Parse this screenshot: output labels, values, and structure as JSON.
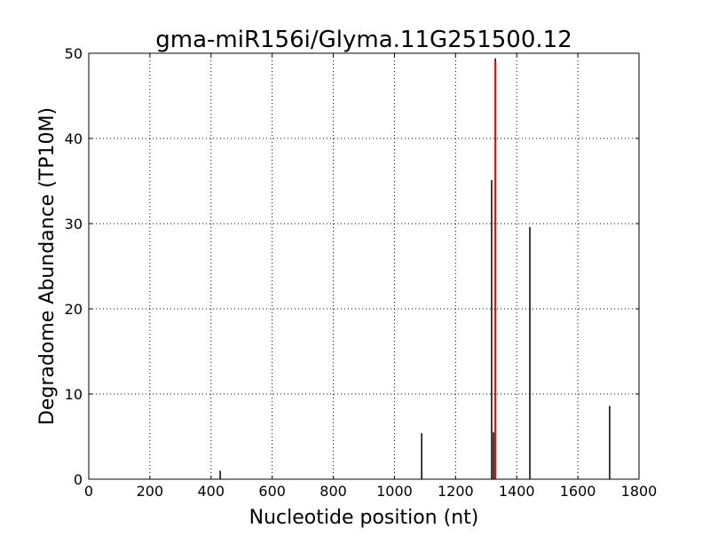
{
  "chart_data": {
    "type": "bar",
    "title": "gma-miR156i/Glyma.11G251500.12",
    "xlabel": "Nucleotide position (nt)",
    "ylabel": "Degradome Abundance (TP10M)",
    "xlim": [
      0,
      1800
    ],
    "ylim": [
      0,
      50
    ],
    "xticks": [
      0,
      200,
      400,
      600,
      800,
      1000,
      1200,
      1400,
      1600,
      1800
    ],
    "yticks": [
      0,
      10,
      20,
      30,
      40,
      50
    ],
    "grid": true,
    "series": [
      {
        "color": "#000000",
        "points": [
          [
            430,
            1.0
          ],
          [
            1089,
            5.4
          ],
          [
            1318,
            35.1
          ],
          [
            1324,
            5.5
          ],
          [
            1330,
            49.4
          ],
          [
            1443,
            29.6
          ],
          [
            1704,
            8.6
          ]
        ]
      },
      {
        "color": "#ff0000",
        "points": [
          [
            1330,
            49.0
          ]
        ]
      }
    ]
  }
}
